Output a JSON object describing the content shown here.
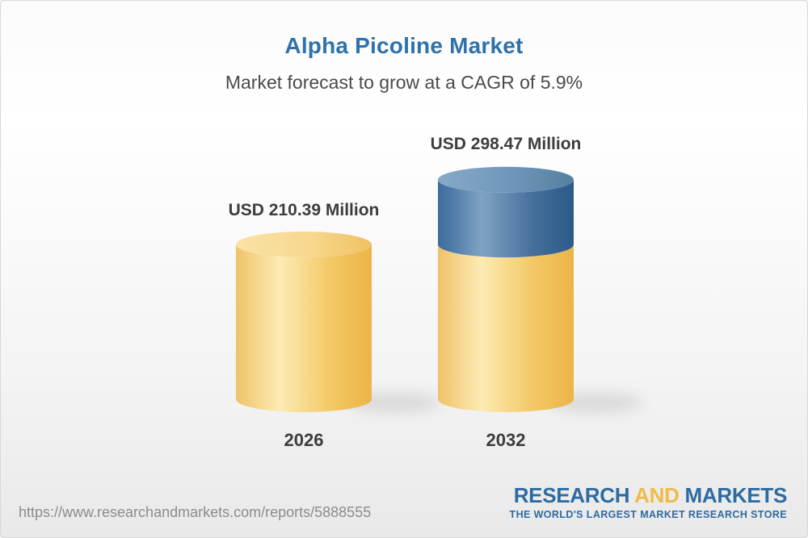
{
  "header": {
    "title": "Alpha Picoline Market",
    "subtitle": "Market forecast to grow at a CAGR of 5.9%"
  },
  "chart_data": {
    "type": "bar",
    "subtype": "3d-cylinder",
    "stacked_growth": true,
    "categories": [
      "2026",
      "2032"
    ],
    "values": [
      210.39,
      298.47
    ],
    "value_labels": [
      "USD 210.39 Million",
      "USD 298.47 Million"
    ],
    "unit": "USD Million",
    "cagr_percent": 5.9,
    "title": "Alpha Picoline Market",
    "subtitle": "Market forecast to grow at a CAGR of 5.9%",
    "xlabel": "",
    "ylabel": "",
    "legend": "none",
    "grid": false,
    "colors": {
      "base_segment": "#F5C963",
      "growth_segment": "#4A76A6",
      "title_accent": "#2d72ab"
    }
  },
  "footer": {
    "url": "https://www.researchandmarkets.com/reports/5888555",
    "logo": {
      "part1": "RESEARCH",
      "part2": "AND",
      "part3": "MARKETS",
      "tagline": "THE WORLD'S LARGEST MARKET RESEARCH STORE"
    }
  }
}
